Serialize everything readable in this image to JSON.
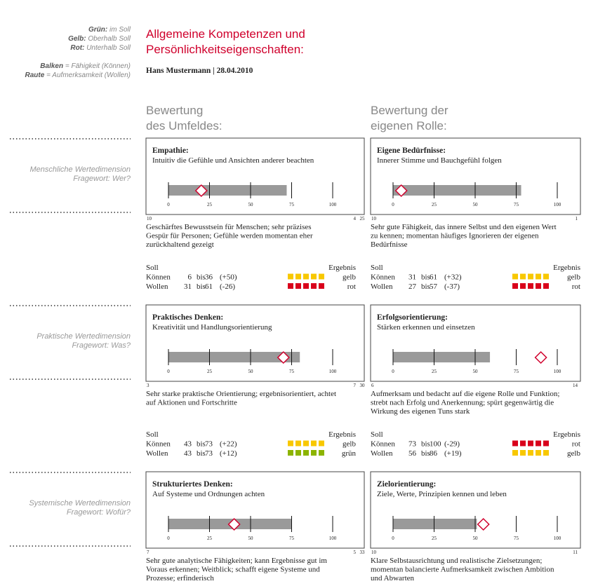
{
  "legend": [
    {
      "key": "Grün:",
      "text": "im Soll"
    },
    {
      "key": "Gelb:",
      "text": "Oberhalb Soll"
    },
    {
      "key": "Rot:",
      "text": "Unterhalb Soll"
    },
    {
      "key": "Balken",
      "text": "= Fähigkeit (Können)"
    },
    {
      "key": "Raute",
      "text": "= Aufmerksamkeit (Wollen)"
    }
  ],
  "header": {
    "title": [
      "Allgemeine Kompetenzen und",
      "Persönlichkeitseigenschaften:"
    ],
    "subtitle": "Hans Mustermann | 28.04.2010"
  },
  "columns": [
    [
      "Bewertung",
      "des Umfeldes:"
    ],
    [
      "Bewertung der",
      "eigenen Rolle:"
    ]
  ],
  "scale": {
    "min": 0,
    "max": 100,
    "ticks": [
      0,
      25,
      50,
      75,
      100
    ]
  },
  "rows": [
    {
      "dimension": [
        "Menschliche Wertedimension",
        "Fragewort: Wer?"
      ],
      "between": 25,
      "cells": [
        {
          "title": "Empathie:",
          "subtitle": "Intuitiv die Gefühle und Ansichten anderer beachten",
          "bar": 72,
          "diamond": 20,
          "corner_left": 10,
          "corner_right": 4,
          "description": [
            "Geschärftes Bewusstsein für Menschen; sehr präzises",
            "Gespür für Personen; Gefühle werden momentan eher",
            "zurückhaltend gezeigt"
          ],
          "soll": {
            "head": "Soll",
            "result_head": "Ergebnis",
            "rows": [
              {
                "label": "Können",
                "from": 6,
                "sep": "bis",
                "to": 36,
                "diff": "(+50)",
                "result": "gelb",
                "color": "#f8c800"
              },
              {
                "label": "Wollen",
                "from": 31,
                "sep": "bis",
                "to": 61,
                "diff": "(-26)",
                "result": "rot",
                "color": "#d9001b"
              }
            ]
          }
        },
        {
          "title": "Eigene Bedürfnisse:",
          "subtitle": "Innerer Stimme und Bauchgefühl folgen",
          "bar": 78,
          "diamond": 5,
          "corner_left": 10,
          "corner_right": 1,
          "description": [
            "Sehr gute Fähigkeit, das innere Selbst und den eigenen Wert",
            "zu kennen; momentan häufiges Ignorieren der eigenen",
            "Bedürfnisse"
          ],
          "soll": {
            "head": "Soll",
            "result_head": "Ergebnis",
            "rows": [
              {
                "label": "Können",
                "from": 31,
                "sep": "bis",
                "to": 61,
                "diff": "(+32)",
                "result": "gelb",
                "color": "#f8c800"
              },
              {
                "label": "Wollen",
                "from": 27,
                "sep": "bis",
                "to": 57,
                "diff": "(-37)",
                "result": "rot",
                "color": "#d9001b"
              }
            ]
          }
        }
      ]
    },
    {
      "dimension": [
        "Praktische Wertedimension",
        "Fragewort: Was?"
      ],
      "between": 30,
      "cells": [
        {
          "title": "Praktisches Denken:",
          "subtitle": "Kreativität und Handlungsorientierung",
          "bar": 80,
          "diamond": 70,
          "corner_left": 3,
          "corner_right": 7,
          "description": [
            "Sehr starke praktische Orientierung; ergebnisorientiert, achtet",
            "auf Aktionen und Fortschritte"
          ],
          "soll": {
            "head": "Soll",
            "result_head": "Ergebnis",
            "rows": [
              {
                "label": "Können",
                "from": 43,
                "sep": "bis",
                "to": 73,
                "diff": "(+22)",
                "result": "gelb",
                "color": "#f8c800"
              },
              {
                "label": "Wollen",
                "from": 43,
                "sep": "bis",
                "to": 73,
                "diff": "(+12)",
                "result": "grün",
                "color": "#8cb400"
              }
            ]
          }
        },
        {
          "title": "Erfolgsorientierung:",
          "subtitle": "Stärken erkennen und einsetzen",
          "bar": 59,
          "diamond": 90,
          "corner_left": 6,
          "corner_right": 14,
          "description": [
            "Aufmerksam und bedacht auf die eigene Rolle und Funktion;",
            "strebt nach Erfolg und Anerkennung; spürt gegenwärtig die",
            "Wirkung des eigenen Tuns stark"
          ],
          "soll": {
            "head": "Soll",
            "result_head": "Ergebnis",
            "rows": [
              {
                "label": "Können",
                "from": 73,
                "sep": "bis",
                "to": 100,
                "diff": "(-29)",
                "result": "rot",
                "color": "#d9001b"
              },
              {
                "label": "Wollen",
                "from": 56,
                "sep": "bis",
                "to": 86,
                "diff": "(+19)",
                "result": "gelb",
                "color": "#f8c800"
              }
            ]
          }
        }
      ]
    },
    {
      "dimension": [
        "Systemische Wertedimension",
        "Fragewort: Wofür?"
      ],
      "between": 33,
      "cells": [
        {
          "title": "Strukturiertes Denken:",
          "subtitle": "Auf Systeme und Ordnungen achten",
          "bar": 75,
          "diamond": 40,
          "corner_left": 7,
          "corner_right": 5,
          "description": [
            "Sehr gute analytische Fähigkeiten; kann Ergebnisse gut im",
            "Voraus erkennen; Weitblick; schafft eigene Systeme und",
            "Prozesse; erfinderisch"
          ]
        },
        {
          "title": "Zielorientierung:",
          "subtitle": "Ziele, Werte, Prinzipien kennen und leben",
          "bar": 51,
          "diamond": 55,
          "corner_left": 10,
          "corner_right": 11,
          "description": [
            "Klare Selbstausrichtung und realistische Zielsetzungen;",
            "momentan balancierte Aufmerksamkeit zwischen Ambition",
            "und Abwarten"
          ]
        }
      ]
    }
  ]
}
